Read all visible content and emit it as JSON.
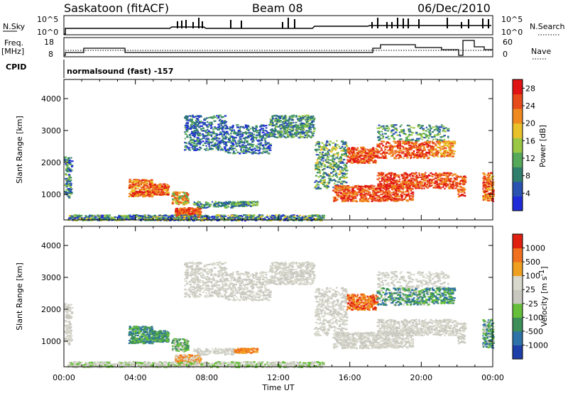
{
  "header": {
    "station": "Saskatoon (fitACF)",
    "beam": "Beam 08",
    "date": "06/Dec/2010"
  },
  "top_panels": {
    "nsky_label": "N.Sky",
    "nsky_ticks": [
      "10^5",
      "10^0"
    ],
    "nsearch_label": "N.Search",
    "nsearch_ticks": [
      "10^5",
      "10^0"
    ],
    "freq_label_1": "Freq.",
    "freq_label_2": "[MHz]",
    "freq_ticks": [
      "18",
      "8"
    ],
    "nave_label": "Nave",
    "nave_ticks": [
      "60",
      "0"
    ],
    "cpid_label": "CPID",
    "cpid_text": "normalsound (fast) -157"
  },
  "colors": {
    "power_scale": [
      "#1f2bd8",
      "#2a52b0",
      "#2f7f6c",
      "#56a85a",
      "#9ac845",
      "#e9c22b",
      "#f08a1f",
      "#e84b1b",
      "#e01414"
    ],
    "velocity_scale": [
      "#1f3fa8",
      "#2f72a8",
      "#3d8f5a",
      "#66bf3a",
      "#c8c8c0",
      "#d8d8cc",
      "#f0a020",
      "#f07020",
      "#e02010"
    ]
  },
  "chart_data": [
    {
      "type": "heatmap",
      "name": "power",
      "xlabel": "Time UT",
      "ylabel": "Slant Range [km]",
      "x_ticks": [
        "00:00",
        "04:00",
        "08:00",
        "12:00",
        "16:00",
        "20:00",
        "00:00"
      ],
      "xlim_hours": [
        0,
        24
      ],
      "y_ticks": [
        "1000",
        "2000",
        "3000",
        "4000"
      ],
      "ylim": [
        200,
        4600
      ],
      "colorbar_label": "Power [dB]",
      "colorbar_ticks": [
        "4",
        "8",
        "12",
        "16",
        "20",
        "24",
        "28"
      ],
      "colorbar_range": [
        0,
        30
      ]
    },
    {
      "type": "heatmap",
      "name": "velocity",
      "xlabel": "Time UT",
      "ylabel": "Slant Range [km]",
      "x_ticks": [
        "00:00",
        "04:00",
        "08:00",
        "12:00",
        "16:00",
        "20:00",
        "00:00"
      ],
      "xlim_hours": [
        0,
        24
      ],
      "y_ticks": [
        "1000",
        "2000",
        "3000",
        "4000"
      ],
      "ylim": [
        200,
        4600
      ],
      "colorbar_label": "Velocity [m s",
      "colorbar_label_sup": "-1",
      "colorbar_label_end": "]",
      "colorbar_ticks": [
        "1000",
        "500",
        "100",
        "25",
        "-25",
        "-100",
        "-500",
        "-1000"
      ]
    }
  ]
}
